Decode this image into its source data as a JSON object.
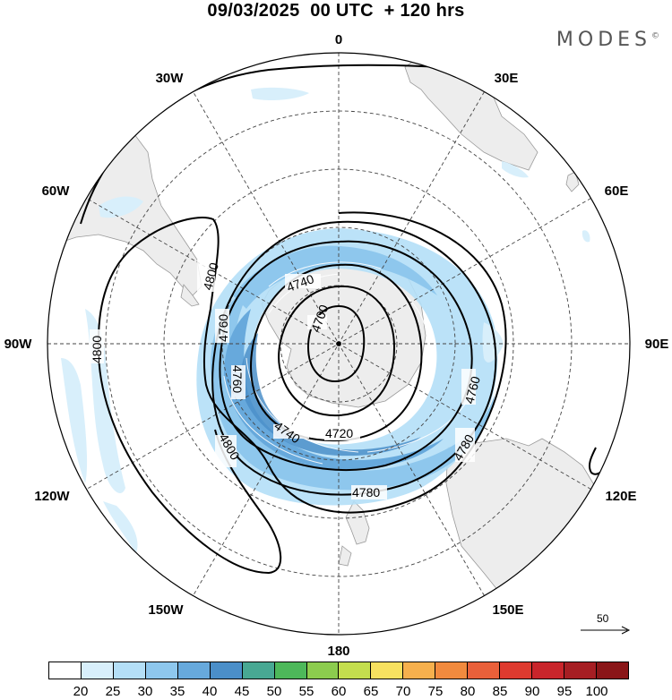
{
  "title": "09/03/2025  00 UTC  + 120 hrs",
  "brand": "MODES",
  "brand_mark": "©",
  "longitude_labels": [
    "0",
    "30E",
    "60E",
    "90E",
    "120E",
    "150E",
    "180",
    "150W",
    "120W",
    "90W",
    "60W",
    "30W"
  ],
  "contour_labels": [
    "4700",
    "4720",
    "4740",
    "4740",
    "4760",
    "4760",
    "4760",
    "4780",
    "4780",
    "4800",
    "4800",
    "4800"
  ],
  "wind_reference": {
    "value": "50"
  },
  "colorbar": {
    "ticks": [
      "20",
      "25",
      "30",
      "35",
      "40",
      "45",
      "50",
      "55",
      "60",
      "65",
      "70",
      "75",
      "80",
      "85",
      "90",
      "95",
      "100"
    ],
    "colors": [
      "#ffffff",
      "#d8effb",
      "#b4dff7",
      "#8ec7ed",
      "#67a9dc",
      "#4b8fc9",
      "#48a893",
      "#4db85a",
      "#8ccc4e",
      "#c4de4e",
      "#f7e160",
      "#f6b04d",
      "#f18a3e",
      "#e9603a",
      "#de3a2f",
      "#c9252b",
      "#a61e23",
      "#8a1618"
    ]
  },
  "colors": {
    "land": "#ededed",
    "ocean": "#ffffff",
    "contour": "#000000",
    "grid": "#444444"
  }
}
